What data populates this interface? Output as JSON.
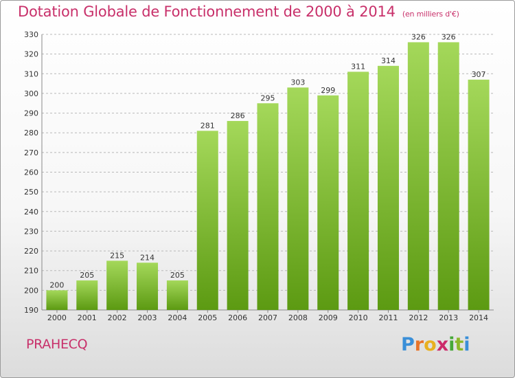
{
  "header": {
    "title": "Dotation Globale de Fonctionnement de 2000 à 2014",
    "subtitle": "(en milliers d'€)"
  },
  "footer": {
    "place": "PRAHECQ",
    "logo_letters": [
      "P",
      "r",
      "o",
      "x",
      "i",
      "t",
      "i"
    ],
    "logo_colors": [
      "#3a8fd8",
      "#e8742a",
      "#e8b020",
      "#cc2a6a",
      "#46a838",
      "#8bb82a",
      "#3a8fd8"
    ]
  },
  "colors": {
    "bar_top": "#a4d85a",
    "bar_bottom": "#5c9a12",
    "grid": "#b8b8b8",
    "text": "#333333"
  },
  "chart_data": {
    "type": "bar",
    "categories": [
      "2000",
      "2001",
      "2002",
      "2003",
      "2004",
      "2005",
      "2006",
      "2007",
      "2008",
      "2009",
      "2010",
      "2011",
      "2012",
      "2013",
      "2014"
    ],
    "values": [
      200,
      205,
      215,
      214,
      205,
      281,
      286,
      295,
      303,
      299,
      311,
      314,
      326,
      326,
      307
    ],
    "ylim": [
      190,
      330
    ],
    "yticks": [
      190,
      200,
      210,
      220,
      230,
      240,
      250,
      260,
      270,
      280,
      290,
      300,
      310,
      320,
      330
    ],
    "grid": "horizontal dashed",
    "legend": "none"
  }
}
